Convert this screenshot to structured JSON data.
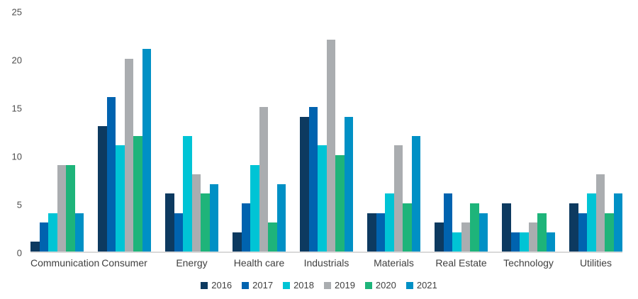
{
  "chart_data": {
    "type": "bar",
    "title": "",
    "xlabel": "",
    "ylabel": "",
    "categories": [
      "Communication",
      "Consumer",
      "Energy",
      "Health care",
      "Industrials",
      "Materials",
      "Real Estate",
      "Technology",
      "Utilities"
    ],
    "series": [
      {
        "name": "2016",
        "color": "#0d3a60",
        "values": [
          1,
          13,
          6,
          2,
          14,
          4,
          3,
          5,
          5
        ]
      },
      {
        "name": "2017",
        "color": "#0063af",
        "values": [
          3,
          16,
          4,
          5,
          15,
          4,
          6,
          2,
          4
        ]
      },
      {
        "name": "2018",
        "color": "#00c4d5",
        "values": [
          4,
          11,
          12,
          9,
          11,
          6,
          2,
          2,
          6
        ]
      },
      {
        "name": "2019",
        "color": "#aaadb0",
        "values": [
          9,
          20,
          8,
          15,
          22,
          11,
          3,
          3,
          8
        ]
      },
      {
        "name": "2020",
        "color": "#1eb47a",
        "values": [
          9,
          12,
          6,
          3,
          10,
          5,
          5,
          4,
          4
        ]
      },
      {
        "name": "2021",
        "color": "#0090c5",
        "values": [
          4,
          21,
          7,
          7,
          14,
          12,
          4,
          2,
          6
        ]
      }
    ],
    "ylim": [
      0,
      25
    ],
    "yticks": [
      0,
      5,
      10,
      15,
      20,
      25
    ],
    "grid": false,
    "legend_position": "bottom",
    "baseline_color": "#d9d9d9"
  }
}
